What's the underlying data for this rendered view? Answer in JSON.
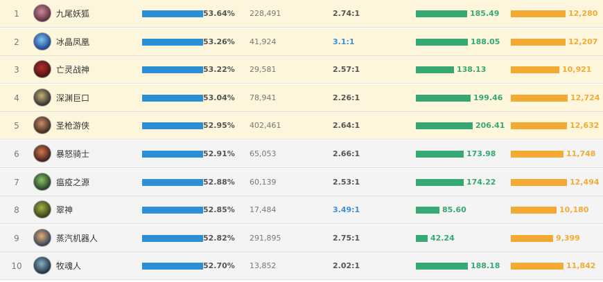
{
  "rows": [
    {
      "rank": "1",
      "name": "九尾妖狐",
      "win_rate": "53.64%",
      "win_rate_value": 53.64,
      "games": "228,491",
      "kda": "2.74:1",
      "kda_highlight": false,
      "damage": "185.49",
      "damage_value": 185.49,
      "gold": "12,280",
      "gold_value": 12280,
      "avatar_colors": [
        "#5a2a3a",
        "#c98a9a"
      ]
    },
    {
      "rank": "2",
      "name": "冰晶凤凰",
      "win_rate": "53.26%",
      "win_rate_value": 53.26,
      "games": "41,924",
      "kda": "3.1:1",
      "kda_highlight": true,
      "damage": "188.05",
      "damage_value": 188.05,
      "gold": "12,207",
      "gold_value": 12207,
      "avatar_colors": [
        "#1a3d8a",
        "#7fc6f0"
      ]
    },
    {
      "rank": "3",
      "name": "亡灵战神",
      "win_rate": "53.22%",
      "win_rate_value": 53.22,
      "games": "29,581",
      "kda": "2.57:1",
      "kda_highlight": false,
      "damage": "138.13",
      "damage_value": 138.13,
      "gold": "10,921",
      "gold_value": 10921,
      "avatar_colors": [
        "#4a1010",
        "#b03030"
      ]
    },
    {
      "rank": "4",
      "name": "深渊巨口",
      "win_rate": "53.04%",
      "win_rate_value": 53.04,
      "games": "78,941",
      "kda": "2.26:1",
      "kda_highlight": false,
      "damage": "199.46",
      "damage_value": 199.46,
      "gold": "12,724",
      "gold_value": 12724,
      "avatar_colors": [
        "#2a2a2a",
        "#c6b078"
      ]
    },
    {
      "rank": "5",
      "name": "圣枪游侠",
      "win_rate": "52.95%",
      "win_rate_value": 52.95,
      "games": "402,461",
      "kda": "2.64:1",
      "kda_highlight": false,
      "damage": "206.41",
      "damage_value": 206.41,
      "gold": "12,632",
      "gold_value": 12632,
      "avatar_colors": [
        "#3a2418",
        "#c98e6a"
      ]
    },
    {
      "rank": "6",
      "name": "暴怒骑士",
      "win_rate": "52.91%",
      "win_rate_value": 52.91,
      "games": "65,053",
      "kda": "2.66:1",
      "kda_highlight": false,
      "damage": "173.98",
      "damage_value": 173.98,
      "gold": "11,748",
      "gold_value": 11748,
      "avatar_colors": [
        "#3a1a1a",
        "#d07a4a"
      ]
    },
    {
      "rank": "7",
      "name": "瘟疫之源",
      "win_rate": "52.88%",
      "win_rate_value": 52.88,
      "games": "60,139",
      "kda": "2.53:1",
      "kda_highlight": false,
      "damage": "174.22",
      "damage_value": 174.22,
      "gold": "12,494",
      "gold_value": 12494,
      "avatar_colors": [
        "#1e3a1e",
        "#8ac26a"
      ]
    },
    {
      "rank": "8",
      "name": "翠神",
      "win_rate": "52.85%",
      "win_rate_value": 52.85,
      "games": "17,484",
      "kda": "3.49:1",
      "kda_highlight": true,
      "damage": "85.60",
      "damage_value": 85.6,
      "gold": "10,180",
      "gold_value": 10180,
      "avatar_colors": [
        "#2e3a14",
        "#a8b04a"
      ]
    },
    {
      "rank": "9",
      "name": "蒸汽机器人",
      "win_rate": "52.82%",
      "win_rate_value": 52.82,
      "games": "291,895",
      "kda": "2.75:1",
      "kda_highlight": false,
      "damage": "42.24",
      "damage_value": 42.24,
      "gold": "9,399",
      "gold_value": 9399,
      "avatar_colors": [
        "#2a3a5a",
        "#e0b070"
      ]
    },
    {
      "rank": "10",
      "name": "牧魂人",
      "win_rate": "52.70%",
      "win_rate_value": 52.7,
      "games": "13,852",
      "kda": "2.02:1",
      "kda_highlight": false,
      "damage": "188.18",
      "damage_value": 188.18,
      "gold": "11,842",
      "gold_value": 11842,
      "avatar_colors": [
        "#1a2a3a",
        "#8ab0c8"
      ]
    }
  ],
  "colors": {
    "win_rate_bar": "#2b8fd6",
    "damage_bar": "#35a873",
    "gold_bar": "#f3aa33",
    "kda_highlight": "#3a8fd9"
  }
}
